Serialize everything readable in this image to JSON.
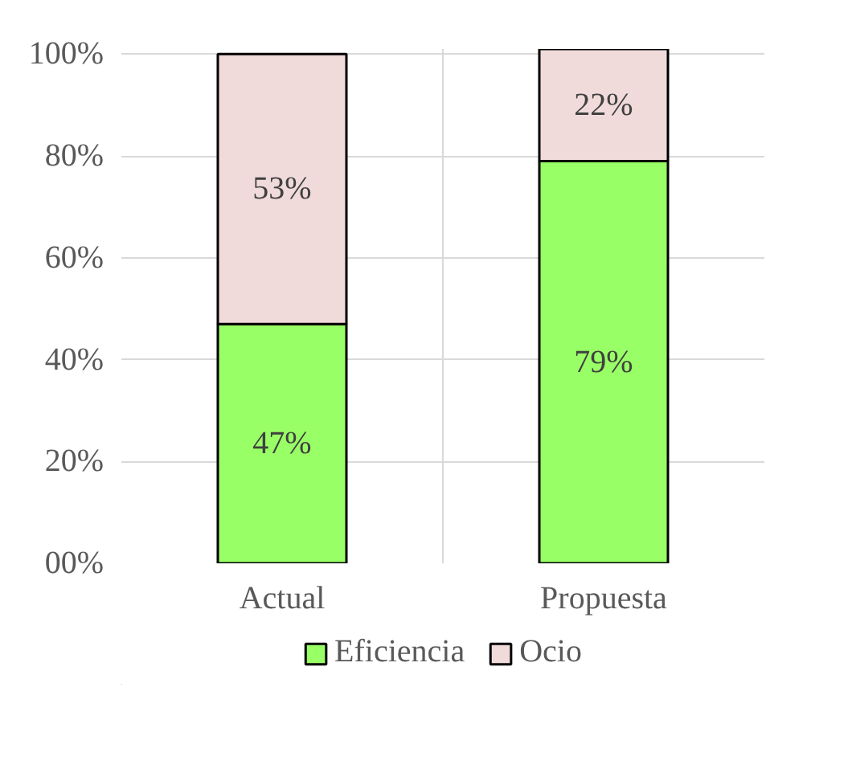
{
  "chart_data": {
    "type": "bar",
    "stacked": true,
    "categories": [
      "Actual",
      "Propuesta"
    ],
    "series": [
      {
        "name": "Eficiencia",
        "color": "#99ff66",
        "values": [
          47,
          79
        ],
        "value_labels": [
          "47%",
          "79%"
        ]
      },
      {
        "name": "Ocio",
        "color": "#f0dada",
        "values": [
          53,
          22
        ],
        "value_labels": [
          "53%",
          "22%"
        ]
      }
    ],
    "ylim": [
      0,
      101
    ],
    "yticks": [
      {
        "value": 0,
        "label": "00%"
      },
      {
        "value": 20,
        "label": "20%"
      },
      {
        "value": 40,
        "label": "40%"
      },
      {
        "value": 60,
        "label": "60%"
      },
      {
        "value": 80,
        "label": "80%"
      },
      {
        "value": 100,
        "label": "100%"
      }
    ],
    "grid": true,
    "legend": "bottom"
  }
}
